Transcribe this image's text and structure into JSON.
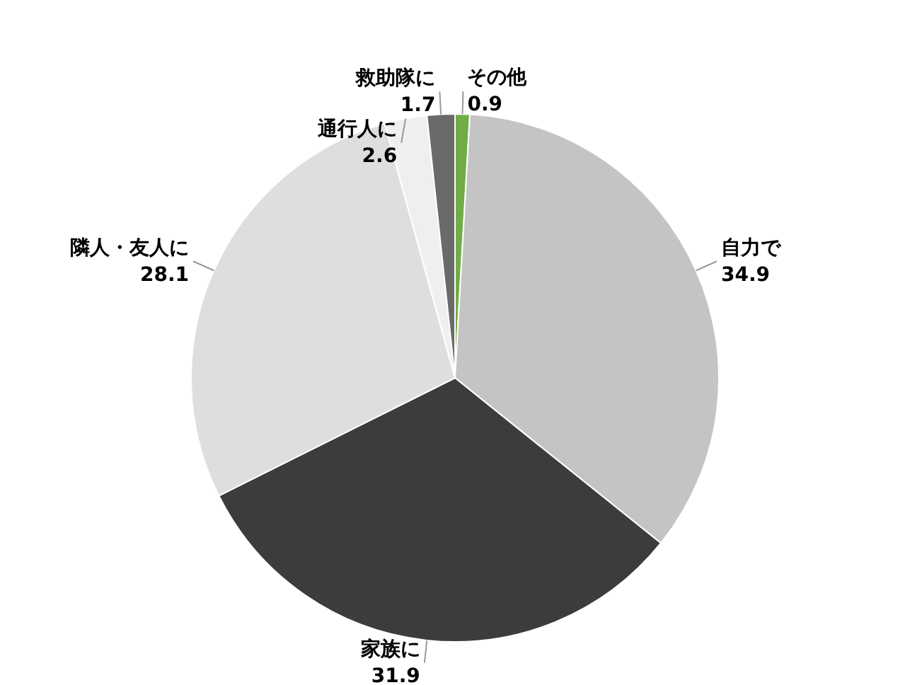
{
  "chart_data": {
    "type": "pie",
    "categories": [
      "その他",
      "自力で",
      "家族に",
      "隣人・友人に",
      "通行人に",
      "救助隊に"
    ],
    "values": [
      0.9,
      34.9,
      31.9,
      28.1,
      2.6,
      1.7
    ],
    "colors": [
      "#70ad47",
      "#c4c4c4",
      "#3c3c3c",
      "#dedede",
      "#efefef",
      "#6a6a6a"
    ],
    "data_labels": true,
    "legend": false
  }
}
